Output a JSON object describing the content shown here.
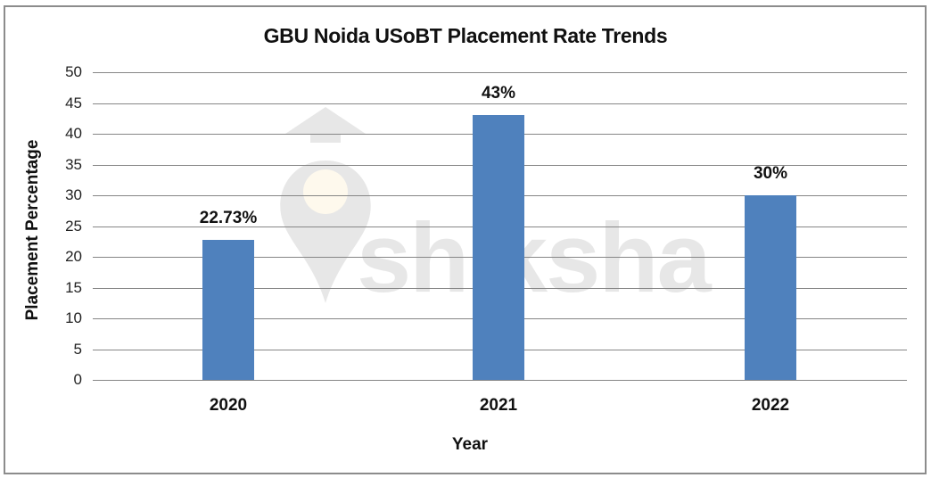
{
  "chart_data": {
    "type": "bar",
    "title": "GBU Noida USoBT Placement Rate Trends",
    "xlabel": "Year",
    "ylabel": "Placement Percentage",
    "categories": [
      "2020",
      "2021",
      "2022"
    ],
    "values": [
      22.73,
      43,
      30
    ],
    "data_labels": [
      "22.73%",
      "43%",
      "30%"
    ],
    "ylim": [
      0,
      50
    ],
    "yticks": [
      "0",
      "5",
      "10",
      "15",
      "20",
      "25",
      "30",
      "35",
      "40",
      "45",
      "50"
    ],
    "grid": true,
    "legend": "none",
    "bar_color": "#4f81bd"
  },
  "watermark": {
    "text": "shiksha"
  }
}
